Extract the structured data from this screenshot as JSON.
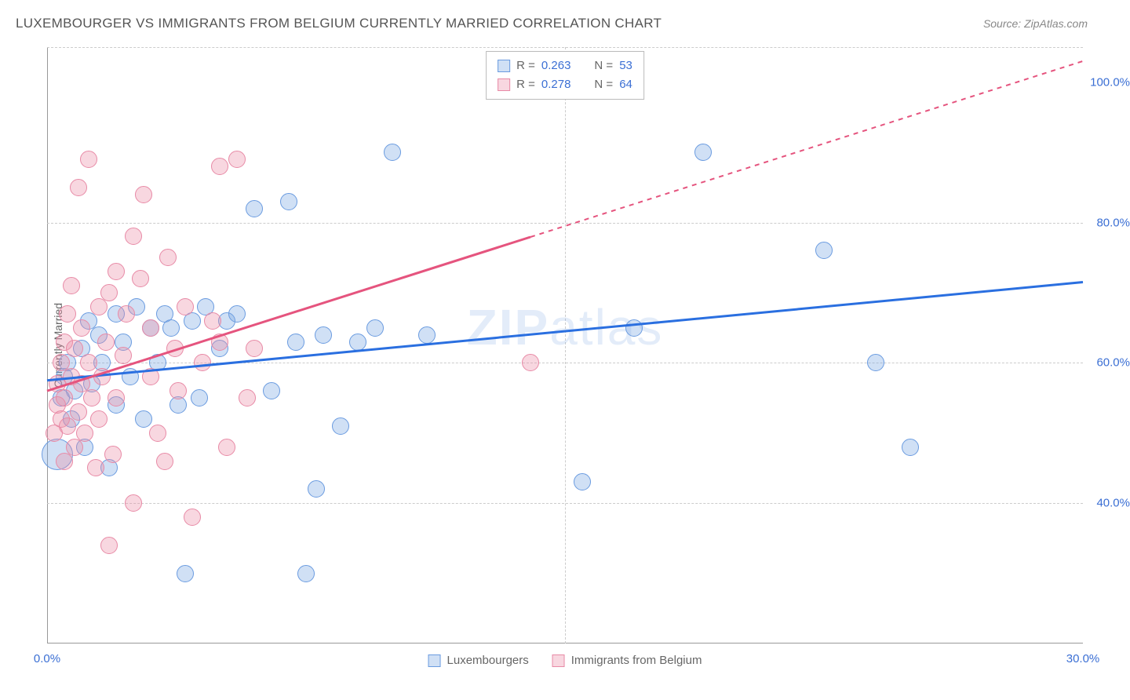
{
  "title": "LUXEMBOURGER VS IMMIGRANTS FROM BELGIUM CURRENTLY MARRIED CORRELATION CHART",
  "source": "Source: ZipAtlas.com",
  "watermark_prefix": "ZIP",
  "watermark_suffix": "atlas",
  "chart": {
    "type": "scatter",
    "background_color": "#ffffff",
    "grid_color": "#cccccc",
    "y_axis_label": "Currently Married",
    "x_axis": {
      "min": 0.0,
      "max": 30.0,
      "ticks": [
        {
          "value": 0.0,
          "label": "0.0%"
        },
        {
          "value": 30.0,
          "label": "30.0%"
        }
      ],
      "tick_color": "#3b6fd4"
    },
    "y_axis": {
      "min": 20.0,
      "max": 105.0,
      "ticks": [
        {
          "value": 40.0,
          "label": "40.0%"
        },
        {
          "value": 60.0,
          "label": "60.0%"
        },
        {
          "value": 80.0,
          "label": "80.0%"
        },
        {
          "value": 100.0,
          "label": "100.0%"
        }
      ],
      "grid_at": [
        105.0,
        80.0,
        60.0,
        40.0
      ],
      "tick_color": "#3b6fd4"
    },
    "x_grid_at": [
      15.0
    ],
    "series": [
      {
        "id": "luxembourgers",
        "label": "Luxembourgers",
        "marker_fill": "rgba(120,165,225,0.35)",
        "marker_stroke": "#6a9be0",
        "marker_radius": 11,
        "trend_color": "#2a6fe0",
        "trend_width": 3,
        "r_value": "0.263",
        "n_value": "53",
        "trend": {
          "x1": 0.0,
          "y1": 57.5,
          "x2": 30.0,
          "y2": 71.5,
          "dashed_from_x": null
        },
        "points": [
          {
            "x": 0.3,
            "y": 47,
            "r": 20
          },
          {
            "x": 0.4,
            "y": 55
          },
          {
            "x": 0.5,
            "y": 58
          },
          {
            "x": 0.6,
            "y": 60
          },
          {
            "x": 0.7,
            "y": 52
          },
          {
            "x": 0.8,
            "y": 56
          },
          {
            "x": 1.0,
            "y": 62
          },
          {
            "x": 1.1,
            "y": 48
          },
          {
            "x": 1.2,
            "y": 66
          },
          {
            "x": 1.3,
            "y": 57
          },
          {
            "x": 1.5,
            "y": 64
          },
          {
            "x": 1.6,
            "y": 60
          },
          {
            "x": 1.8,
            "y": 45
          },
          {
            "x": 2.0,
            "y": 67
          },
          {
            "x": 2.0,
            "y": 54
          },
          {
            "x": 2.2,
            "y": 63
          },
          {
            "x": 2.4,
            "y": 58
          },
          {
            "x": 2.6,
            "y": 68
          },
          {
            "x": 2.8,
            "y": 52
          },
          {
            "x": 3.0,
            "y": 65
          },
          {
            "x": 3.2,
            "y": 60
          },
          {
            "x": 3.4,
            "y": 67
          },
          {
            "x": 3.6,
            "y": 65
          },
          {
            "x": 3.8,
            "y": 54
          },
          {
            "x": 4.0,
            "y": 30
          },
          {
            "x": 4.2,
            "y": 66
          },
          {
            "x": 4.4,
            "y": 55
          },
          {
            "x": 4.6,
            "y": 68
          },
          {
            "x": 5.0,
            "y": 62
          },
          {
            "x": 5.2,
            "y": 66
          },
          {
            "x": 5.5,
            "y": 67
          },
          {
            "x": 6.0,
            "y": 82
          },
          {
            "x": 6.5,
            "y": 56
          },
          {
            "x": 7.0,
            "y": 83
          },
          {
            "x": 7.2,
            "y": 63
          },
          {
            "x": 7.5,
            "y": 30
          },
          {
            "x": 7.8,
            "y": 42
          },
          {
            "x": 8.0,
            "y": 64
          },
          {
            "x": 8.5,
            "y": 51
          },
          {
            "x": 9.0,
            "y": 63
          },
          {
            "x": 9.5,
            "y": 65
          },
          {
            "x": 10.0,
            "y": 90
          },
          {
            "x": 11.0,
            "y": 64
          },
          {
            "x": 15.5,
            "y": 43
          },
          {
            "x": 17.0,
            "y": 65
          },
          {
            "x": 19.0,
            "y": 90
          },
          {
            "x": 22.5,
            "y": 76
          },
          {
            "x": 24.0,
            "y": 60
          },
          {
            "x": 25.0,
            "y": 48
          }
        ]
      },
      {
        "id": "belgium",
        "label": "Immigrants from Belgium",
        "marker_fill": "rgba(235,140,165,0.35)",
        "marker_stroke": "#e88aa6",
        "marker_radius": 11,
        "trend_color": "#e5547e",
        "trend_width": 3,
        "r_value": "0.278",
        "n_value": "64",
        "trend": {
          "x1": 0.0,
          "y1": 56.0,
          "x2": 30.0,
          "y2": 103.0,
          "dashed_from_x": 14.0
        },
        "points": [
          {
            "x": 0.2,
            "y": 50
          },
          {
            "x": 0.3,
            "y": 54
          },
          {
            "x": 0.3,
            "y": 57
          },
          {
            "x": 0.4,
            "y": 52
          },
          {
            "x": 0.4,
            "y": 60
          },
          {
            "x": 0.5,
            "y": 46
          },
          {
            "x": 0.5,
            "y": 55
          },
          {
            "x": 0.5,
            "y": 63
          },
          {
            "x": 0.6,
            "y": 67
          },
          {
            "x": 0.6,
            "y": 51
          },
          {
            "x": 0.7,
            "y": 58
          },
          {
            "x": 0.7,
            "y": 71
          },
          {
            "x": 0.8,
            "y": 48
          },
          {
            "x": 0.8,
            "y": 62
          },
          {
            "x": 0.9,
            "y": 53
          },
          {
            "x": 0.9,
            "y": 85
          },
          {
            "x": 1.0,
            "y": 57
          },
          {
            "x": 1.0,
            "y": 65
          },
          {
            "x": 1.1,
            "y": 50
          },
          {
            "x": 1.2,
            "y": 89
          },
          {
            "x": 1.2,
            "y": 60
          },
          {
            "x": 1.3,
            "y": 55
          },
          {
            "x": 1.4,
            "y": 45
          },
          {
            "x": 1.5,
            "y": 68
          },
          {
            "x": 1.5,
            "y": 52
          },
          {
            "x": 1.6,
            "y": 58
          },
          {
            "x": 1.7,
            "y": 63
          },
          {
            "x": 1.8,
            "y": 70
          },
          {
            "x": 1.8,
            "y": 34
          },
          {
            "x": 1.9,
            "y": 47
          },
          {
            "x": 2.0,
            "y": 73
          },
          {
            "x": 2.0,
            "y": 55
          },
          {
            "x": 2.2,
            "y": 61
          },
          {
            "x": 2.3,
            "y": 67
          },
          {
            "x": 2.5,
            "y": 78
          },
          {
            "x": 2.5,
            "y": 40
          },
          {
            "x": 2.7,
            "y": 72
          },
          {
            "x": 2.8,
            "y": 84
          },
          {
            "x": 3.0,
            "y": 58
          },
          {
            "x": 3.0,
            "y": 65
          },
          {
            "x": 3.2,
            "y": 50
          },
          {
            "x": 3.4,
            "y": 46
          },
          {
            "x": 3.5,
            "y": 75
          },
          {
            "x": 3.7,
            "y": 62
          },
          {
            "x": 3.8,
            "y": 56
          },
          {
            "x": 4.0,
            "y": 68
          },
          {
            "x": 4.2,
            "y": 38
          },
          {
            "x": 4.5,
            "y": 60
          },
          {
            "x": 4.8,
            "y": 66
          },
          {
            "x": 5.0,
            "y": 88
          },
          {
            "x": 5.0,
            "y": 63
          },
          {
            "x": 5.2,
            "y": 48
          },
          {
            "x": 5.5,
            "y": 89
          },
          {
            "x": 5.8,
            "y": 55
          },
          {
            "x": 6.0,
            "y": 62
          },
          {
            "x": 14.0,
            "y": 60
          }
        ]
      }
    ],
    "legend_top": {
      "stat_labels": {
        "r": "R =",
        "n": "N ="
      },
      "value_color": "#3b6fd4"
    },
    "legend_bottom_order": [
      "luxembourgers",
      "belgium"
    ]
  }
}
